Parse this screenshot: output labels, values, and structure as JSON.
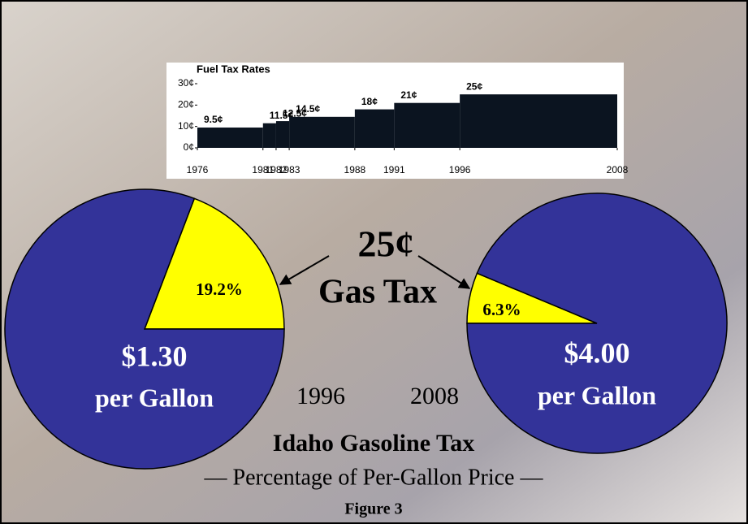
{
  "slide": {
    "callout_amount": "25¢",
    "callout_label": "Gas Tax",
    "title": "Idaho Gasoline Tax",
    "subtitle": "— Percentage of Per-Gallon Price —",
    "figure": "Figure 3"
  },
  "chart_data": [
    {
      "type": "step",
      "title": "Fuel Tax Rates",
      "color": "#0b1420",
      "x": [
        1976,
        1981,
        1982,
        1983,
        1988,
        1991,
        1996
      ],
      "values": [
        9.5,
        11.5,
        12.5,
        14.5,
        18,
        21,
        25
      ],
      "value_labels": [
        "9.5¢",
        "11.5¢",
        "12.5¢",
        "14.5¢",
        "18¢",
        "21¢",
        "25¢"
      ],
      "xlim": [
        1976,
        2008
      ],
      "xticks": [
        1976,
        1981,
        1982,
        1983,
        1988,
        1991,
        1996,
        2008
      ],
      "ylim": [
        0,
        30
      ],
      "yticks": [
        {
          "value": 0,
          "label": "0¢"
        },
        {
          "value": 10,
          "label": "10¢"
        },
        {
          "value": 20,
          "label": "20¢"
        },
        {
          "value": 30,
          "label": "30¢"
        }
      ]
    },
    {
      "type": "pie",
      "xlabel": "1996",
      "center_label": [
        "$1.30",
        "per Gallon"
      ],
      "values": [
        19.2,
        80.8
      ],
      "value_labels": [
        "19.2%",
        null
      ],
      "colors": [
        "#ffff00",
        "#333399"
      ]
    },
    {
      "type": "pie",
      "xlabel": "2008",
      "center_label": [
        "$4.00",
        "per Gallon"
      ],
      "values": [
        6.3,
        93.7
      ],
      "value_labels": [
        "6.3%",
        null
      ],
      "colors": [
        "#ffff00",
        "#333399"
      ]
    }
  ]
}
